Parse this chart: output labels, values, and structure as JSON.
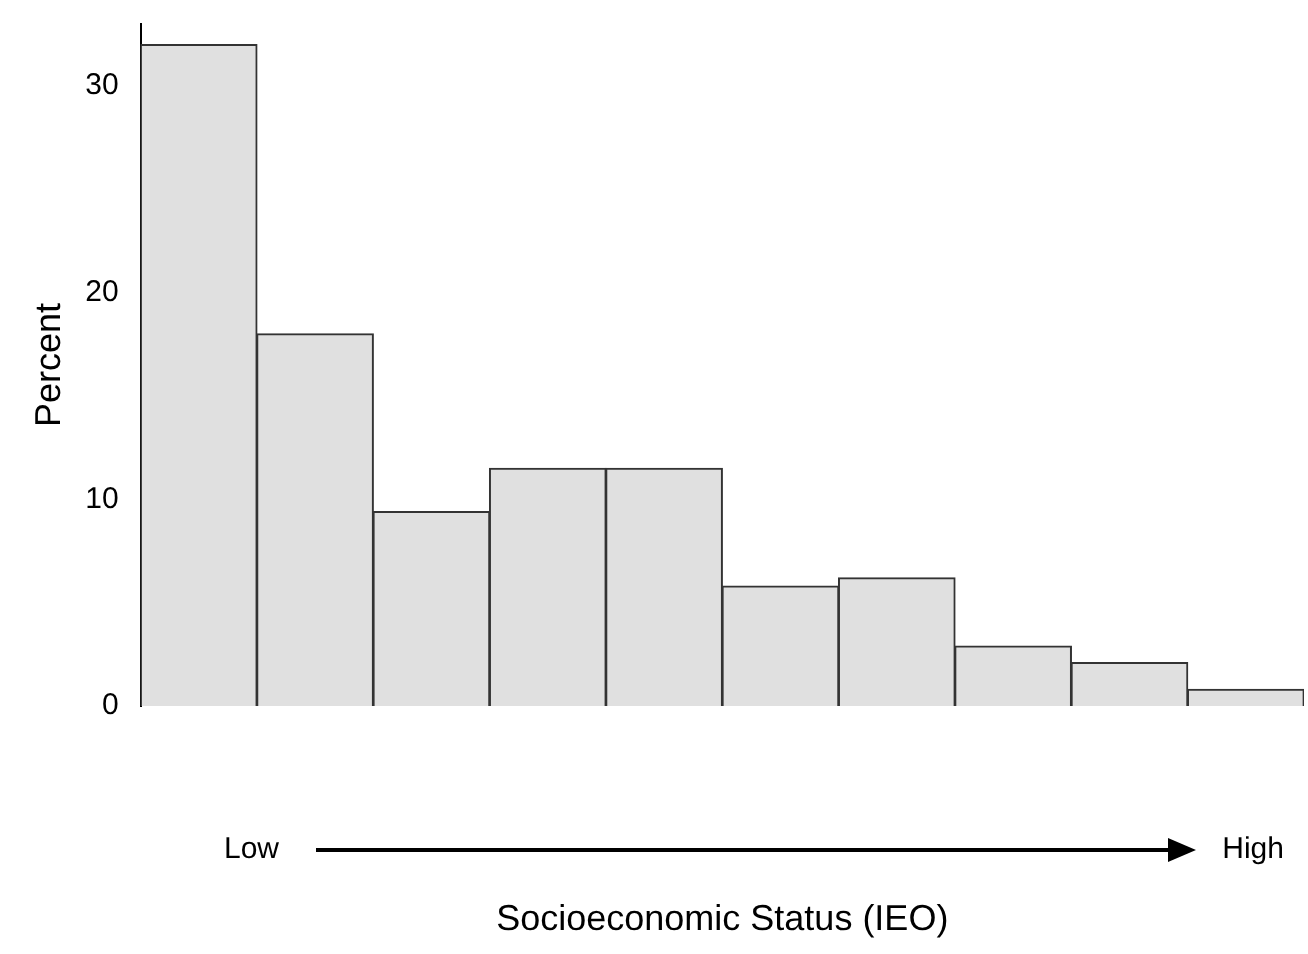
{
  "chart_data": {
    "type": "bar",
    "xlabel": "Socioeconomic Status (IEO)",
    "ylabel": "Percent",
    "categories": [
      null,
      null,
      null,
      null,
      null,
      null,
      null,
      null,
      null,
      null
    ],
    "values": [
      32,
      18,
      9.4,
      11.5,
      11.5,
      5.8,
      6.2,
      2.9,
      2.1,
      0.8
    ],
    "color": "#e0e0e0",
    "ylim": [
      0,
      33
    ],
    "yticks": [
      0,
      10,
      20,
      30
    ],
    "grid": false,
    "legend": false,
    "annotations": [
      "Low",
      "High"
    ]
  }
}
